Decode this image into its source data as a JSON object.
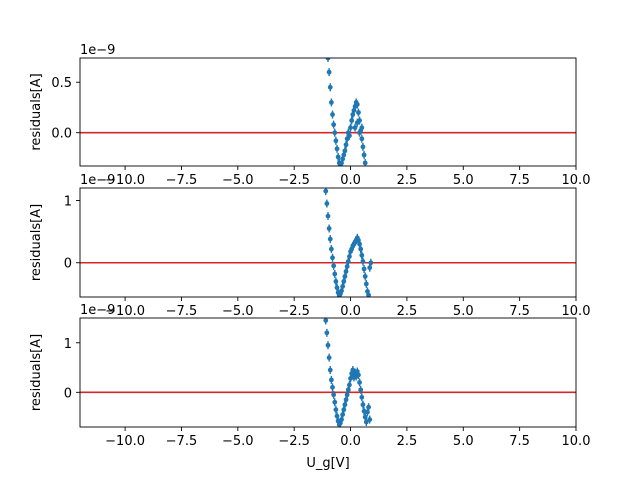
{
  "chart_data": [
    {
      "type": "scatter",
      "title": "",
      "ylabel": "residuals[A]",
      "xlabel": "",
      "scale_label": "1e−9",
      "xlim": [
        -12,
        10
      ],
      "ylim": [
        -0.33,
        0.74
      ],
      "xticks": [
        -10,
        -7.5,
        -5,
        -2.5,
        0,
        2.5,
        5,
        7.5,
        10
      ],
      "xtick_labels": [
        "−10.0",
        "−7.5",
        "−5.0",
        "−2.5",
        "0.0",
        "2.5",
        "5.0",
        "7.5",
        "10.0"
      ],
      "yticks": [
        0,
        0.5
      ],
      "ytick_labels": [
        "0.0",
        "0.5"
      ],
      "reference_line_y": 0,
      "reference_color": "#d62728",
      "marker_color": "#1f77b4",
      "series": [
        {
          "values": [
            {
              "x": -1.0,
              "y": 0.74
            },
            {
              "x": -0.95,
              "y": 0.6
            },
            {
              "x": -0.9,
              "y": 0.45
            },
            {
              "x": -0.85,
              "y": 0.3
            },
            {
              "x": -0.8,
              "y": 0.18
            },
            {
              "x": -0.75,
              "y": 0.08
            },
            {
              "x": -0.7,
              "y": 0.0
            },
            {
              "x": -0.65,
              "y": -0.08
            },
            {
              "x": -0.6,
              "y": -0.16
            },
            {
              "x": -0.55,
              "y": -0.24
            },
            {
              "x": -0.5,
              "y": -0.3
            },
            {
              "x": -0.45,
              "y": -0.32
            },
            {
              "x": -0.4,
              "y": -0.3
            },
            {
              "x": -0.35,
              "y": -0.26
            },
            {
              "x": -0.3,
              "y": -0.22
            },
            {
              "x": -0.25,
              "y": -0.18
            },
            {
              "x": -0.2,
              "y": -0.12
            },
            {
              "x": -0.15,
              "y": -0.06
            },
            {
              "x": -0.1,
              "y": 0.0
            },
            {
              "x": 0.0,
              "y": 0.05
            },
            {
              "x": 0.05,
              "y": 0.12
            },
            {
              "x": 0.1,
              "y": 0.18
            },
            {
              "x": 0.15,
              "y": 0.22
            },
            {
              "x": 0.2,
              "y": 0.26
            },
            {
              "x": 0.25,
              "y": 0.3
            },
            {
              "x": 0.3,
              "y": 0.28
            },
            {
              "x": 0.35,
              "y": 0.2
            },
            {
              "x": 0.4,
              "y": 0.12
            },
            {
              "x": 0.45,
              "y": 0.02
            },
            {
              "x": 0.5,
              "y": -0.06
            },
            {
              "x": 0.55,
              "y": -0.14
            },
            {
              "x": 0.6,
              "y": -0.22
            },
            {
              "x": 0.65,
              "y": -0.3
            },
            {
              "x": 0.2,
              "y": 0.05
            },
            {
              "x": 0.3,
              "y": 0.1
            },
            {
              "x": 0.4,
              "y": 0.0
            },
            {
              "x": -0.05,
              "y": -0.03
            },
            {
              "x": 0.5,
              "y": 0.05
            }
          ]
        }
      ]
    },
    {
      "type": "scatter",
      "title": "",
      "ylabel": "residuals[A]",
      "xlabel": "",
      "scale_label": "1e−9",
      "xlim": [
        -12,
        10
      ],
      "ylim": [
        -0.55,
        1.2
      ],
      "xticks": [
        -10,
        -7.5,
        -5,
        -2.5,
        0,
        2.5,
        5,
        7.5,
        10
      ],
      "xtick_labels": [
        "−10.0",
        "−7.5",
        "−5.0",
        "−2.5",
        "0.0",
        "2.5",
        "5.0",
        "7.5",
        "10.0"
      ],
      "yticks": [
        0,
        1
      ],
      "ytick_labels": [
        "0",
        "1"
      ],
      "reference_line_y": 0,
      "reference_color": "#d62728",
      "marker_color": "#1f77b4",
      "series": [
        {
          "values": [
            {
              "x": -1.1,
              "y": 1.15
            },
            {
              "x": -1.05,
              "y": 0.95
            },
            {
              "x": -1.0,
              "y": 0.75
            },
            {
              "x": -0.95,
              "y": 0.55
            },
            {
              "x": -0.9,
              "y": 0.38
            },
            {
              "x": -0.85,
              "y": 0.22
            },
            {
              "x": -0.8,
              "y": 0.08
            },
            {
              "x": -0.75,
              "y": -0.05
            },
            {
              "x": -0.7,
              "y": -0.18
            },
            {
              "x": -0.65,
              "y": -0.3
            },
            {
              "x": -0.6,
              "y": -0.4
            },
            {
              "x": -0.55,
              "y": -0.48
            },
            {
              "x": -0.5,
              "y": -0.53
            },
            {
              "x": -0.45,
              "y": -0.5
            },
            {
              "x": -0.4,
              "y": -0.45
            },
            {
              "x": -0.35,
              "y": -0.38
            },
            {
              "x": -0.3,
              "y": -0.3
            },
            {
              "x": -0.25,
              "y": -0.22
            },
            {
              "x": -0.2,
              "y": -0.14
            },
            {
              "x": -0.15,
              "y": -0.06
            },
            {
              "x": -0.1,
              "y": 0.02
            },
            {
              "x": -0.05,
              "y": 0.1
            },
            {
              "x": 0.0,
              "y": 0.18
            },
            {
              "x": 0.05,
              "y": 0.22
            },
            {
              "x": 0.1,
              "y": 0.27
            },
            {
              "x": 0.15,
              "y": 0.3
            },
            {
              "x": 0.2,
              "y": 0.33
            },
            {
              "x": 0.25,
              "y": 0.36
            },
            {
              "x": 0.3,
              "y": 0.4
            },
            {
              "x": 0.35,
              "y": 0.36
            },
            {
              "x": 0.4,
              "y": 0.3
            },
            {
              "x": 0.45,
              "y": 0.22
            },
            {
              "x": 0.5,
              "y": 0.12
            },
            {
              "x": 0.55,
              "y": 0.02
            },
            {
              "x": 0.6,
              "y": -0.1
            },
            {
              "x": 0.65,
              "y": -0.22
            },
            {
              "x": 0.7,
              "y": -0.34
            },
            {
              "x": 0.75,
              "y": -0.46
            },
            {
              "x": 0.8,
              "y": -0.52
            },
            {
              "x": 0.85,
              "y": -0.08
            },
            {
              "x": 0.9,
              "y": 0.0
            }
          ]
        }
      ]
    },
    {
      "type": "scatter",
      "title": "",
      "ylabel": "residuals[A]",
      "xlabel": "U_g[V]",
      "scale_label": "1e−9",
      "xlim": [
        -12,
        10
      ],
      "ylim": [
        -0.7,
        1.5
      ],
      "xticks": [
        -10,
        -7.5,
        -5,
        -2.5,
        0,
        2.5,
        5,
        7.5,
        10
      ],
      "xtick_labels": [
        "−10.0",
        "−7.5",
        "−5.0",
        "−2.5",
        "0.0",
        "2.5",
        "5.0",
        "7.5",
        "10.0"
      ],
      "yticks": [
        0,
        1
      ],
      "ytick_labels": [
        "0",
        "1"
      ],
      "reference_line_y": 0,
      "reference_color": "#d62728",
      "marker_color": "#1f77b4",
      "series": [
        {
          "values": [
            {
              "x": -1.1,
              "y": 1.45
            },
            {
              "x": -1.05,
              "y": 1.2
            },
            {
              "x": -1.0,
              "y": 0.95
            },
            {
              "x": -0.95,
              "y": 0.7
            },
            {
              "x": -0.9,
              "y": 0.45
            },
            {
              "x": -0.85,
              "y": 0.25
            },
            {
              "x": -0.8,
              "y": 0.1
            },
            {
              "x": -0.75,
              "y": -0.05
            },
            {
              "x": -0.7,
              "y": -0.2
            },
            {
              "x": -0.65,
              "y": -0.35
            },
            {
              "x": -0.6,
              "y": -0.48
            },
            {
              "x": -0.55,
              "y": -0.58
            },
            {
              "x": -0.5,
              "y": -0.65
            },
            {
              "x": -0.45,
              "y": -0.62
            },
            {
              "x": -0.4,
              "y": -0.55
            },
            {
              "x": -0.35,
              "y": -0.45
            },
            {
              "x": -0.3,
              "y": -0.35
            },
            {
              "x": -0.25,
              "y": -0.25
            },
            {
              "x": -0.2,
              "y": -0.15
            },
            {
              "x": -0.15,
              "y": -0.05
            },
            {
              "x": -0.1,
              "y": 0.05
            },
            {
              "x": -0.05,
              "y": 0.15
            },
            {
              "x": 0.0,
              "y": 0.28
            },
            {
              "x": 0.05,
              "y": 0.38
            },
            {
              "x": 0.1,
              "y": 0.45
            },
            {
              "x": 0.15,
              "y": 0.3
            },
            {
              "x": 0.2,
              "y": 0.4
            },
            {
              "x": 0.25,
              "y": 0.32
            },
            {
              "x": 0.3,
              "y": 0.42
            },
            {
              "x": 0.35,
              "y": 0.35
            },
            {
              "x": 0.4,
              "y": 0.2
            },
            {
              "x": 0.45,
              "y": 0.05
            },
            {
              "x": 0.5,
              "y": -0.1
            },
            {
              "x": 0.55,
              "y": -0.25
            },
            {
              "x": 0.6,
              "y": -0.38
            },
            {
              "x": 0.65,
              "y": -0.5
            },
            {
              "x": 0.7,
              "y": -0.6
            },
            {
              "x": 0.75,
              "y": -0.4
            },
            {
              "x": 0.8,
              "y": -0.3
            },
            {
              "x": 0.85,
              "y": -0.55
            }
          ]
        }
      ]
    }
  ]
}
